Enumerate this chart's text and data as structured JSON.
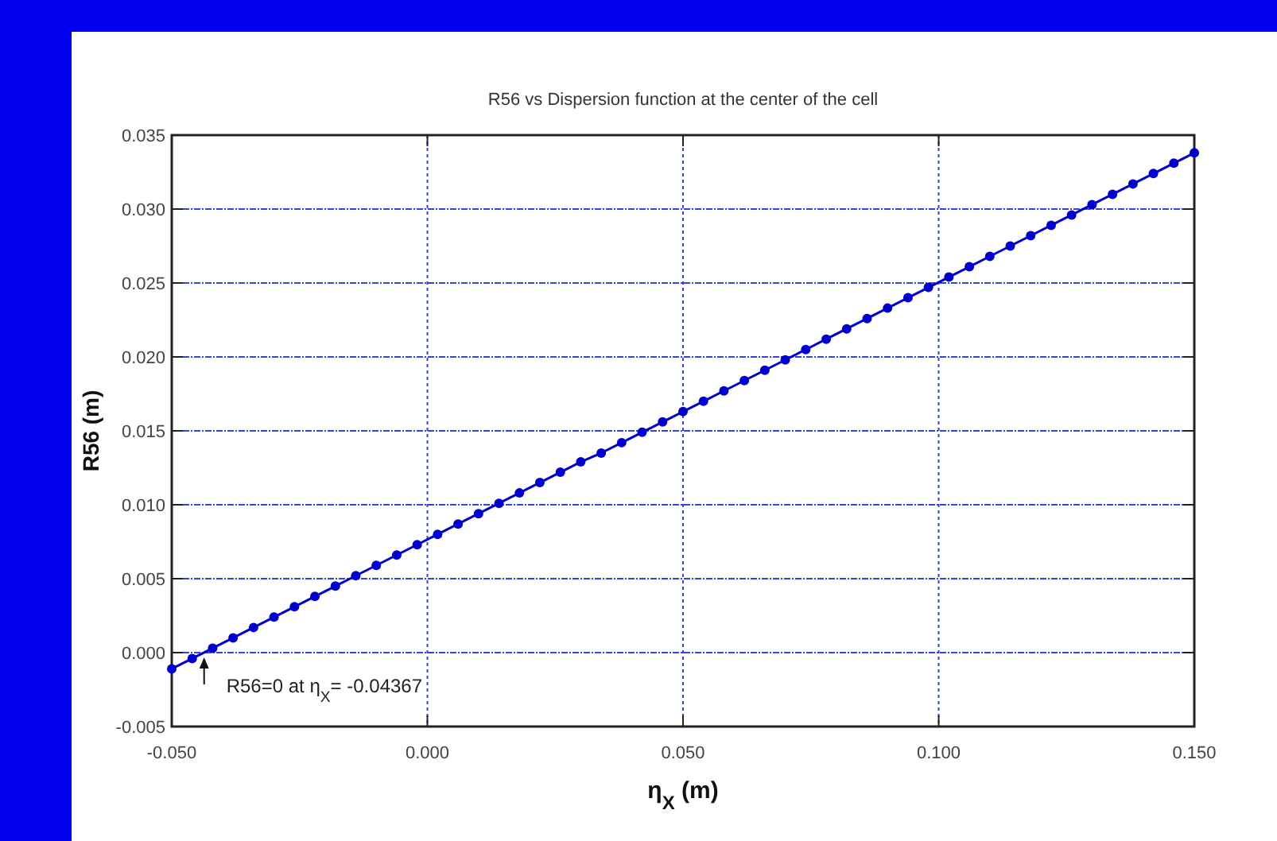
{
  "chart_data": {
    "type": "line",
    "title": "R56 vs Dispersion function at  the center of the cell",
    "xlabel": "η$_{X}$ (m)",
    "ylabel": "R56 (m)",
    "x": [
      -0.05,
      -0.046,
      -0.042,
      -0.038,
      -0.034,
      -0.03,
      -0.026,
      -0.022,
      -0.018,
      -0.014,
      -0.01,
      -0.006,
      -0.002,
      0.002,
      0.006,
      0.01,
      0.014,
      0.018,
      0.022,
      0.026,
      0.03,
      0.034,
      0.038,
      0.042,
      0.046,
      0.05,
      0.054,
      0.058,
      0.062,
      0.066,
      0.07,
      0.074,
      0.078,
      0.082,
      0.086,
      0.09,
      0.094,
      0.098,
      0.102,
      0.106,
      0.11,
      0.114,
      0.118,
      0.122,
      0.126,
      0.13,
      0.134,
      0.138,
      0.142,
      0.146,
      0.15
    ],
    "series": [
      {
        "color": "#0000cc",
        "values": [
          -0.0011,
          -0.0004,
          0.0003,
          0.001,
          0.0017,
          0.0024,
          0.0031,
          0.0038,
          0.0045,
          0.0052,
          0.0059,
          0.0066,
          0.0073,
          0.008,
          0.0087,
          0.0094,
          0.0101,
          0.0108,
          0.0115,
          0.0122,
          0.0129,
          0.0135,
          0.0142,
          0.0149,
          0.0156,
          0.0163,
          0.017,
          0.0177,
          0.0184,
          0.0191,
          0.0198,
          0.0205,
          0.0212,
          0.0219,
          0.0226,
          0.0233,
          0.024,
          0.0247,
          0.0254,
          0.0261,
          0.0268,
          0.0275,
          0.0282,
          0.0289,
          0.0296,
          0.0303,
          0.031,
          0.0317,
          0.0324,
          0.0331,
          0.0338
        ]
      }
    ],
    "xlim": [
      -0.05,
      0.15
    ],
    "xticks": [
      {
        "value": -0.05,
        "label": "-0.050"
      },
      {
        "value": 0,
        "label": "0.000"
      },
      {
        "value": 0.05,
        "label": "0.050"
      },
      {
        "value": 0.1,
        "label": "0.100"
      },
      {
        "value": 0.15,
        "label": "0.150"
      }
    ],
    "ylim": [
      -0.005,
      0.035
    ],
    "yticks": [
      {
        "value": -0.005,
        "label": "-0.005"
      },
      {
        "value": 0,
        "label": "0.000"
      },
      {
        "value": 0.005,
        "label": "0.005"
      },
      {
        "value": 0.01,
        "label": "0.010"
      },
      {
        "value": 0.015,
        "label": "0.015"
      },
      {
        "value": 0.02,
        "label": "0.020"
      },
      {
        "value": 0.025,
        "label": "0.025"
      },
      {
        "value": 0.03,
        "label": "0.030"
      },
      {
        "value": 0.035,
        "label": "0.035"
      }
    ],
    "grid": true,
    "marker": "circle",
    "line_style": "solid",
    "annotations": [
      {
        "text": "R56=0 at η$_{X}$= -0.04367",
        "x": -0.04367,
        "y": 0
      }
    ]
  }
}
